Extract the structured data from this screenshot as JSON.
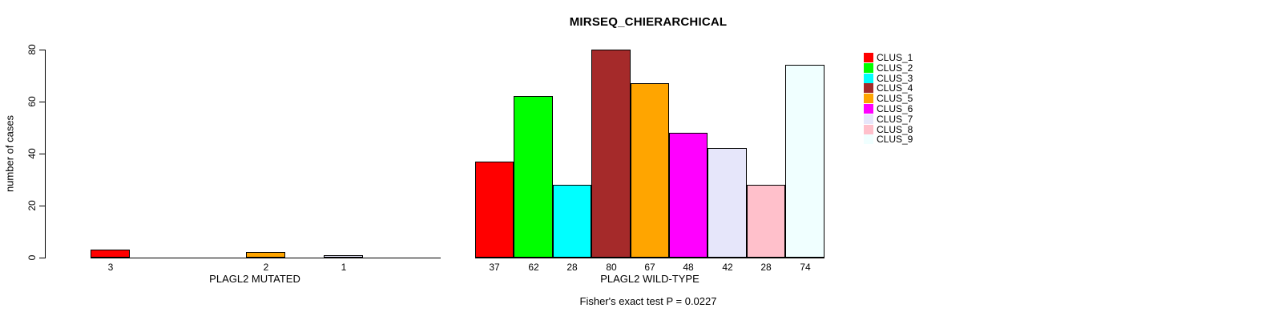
{
  "chart_data": {
    "type": "bar",
    "title": "MIRSEQ_CHIERARCHICAL",
    "ylabel": "number of cases",
    "ylim": [
      0,
      80
    ],
    "yticks": [
      0,
      20,
      40,
      60,
      80
    ],
    "grid": false,
    "bar_spacing": 0,
    "legend_position": "right",
    "annotation": "Fisher's exact test P = 0.0227",
    "legend_entries": [
      {
        "label": "CLUS_1",
        "color": "#FF0000"
      },
      {
        "label": "CLUS_2",
        "color": "#00FF00"
      },
      {
        "label": "CLUS_3",
        "color": "#00FFFF"
      },
      {
        "label": "CLUS_4",
        "color": "#A52A2A"
      },
      {
        "label": "CLUS_5",
        "color": "#FFA500"
      },
      {
        "label": "CLUS_6",
        "color": "#FF00FF"
      },
      {
        "label": "CLUS_7",
        "color": "#E6E6FA"
      },
      {
        "label": "CLUS_8",
        "color": "#FFC0CB"
      },
      {
        "label": "CLUS_9",
        "color": "#F0FFFF"
      }
    ],
    "panels": [
      {
        "xlabel": "PLAGL2 MUTATED",
        "slots": 9,
        "bars": [
          {
            "cluster": "CLUS_1",
            "slot": 0,
            "value": 3,
            "label": "3",
            "color": "#FF0000"
          },
          {
            "cluster": "CLUS_5",
            "slot": 4,
            "value": 2,
            "label": "2",
            "color": "#FFA500"
          },
          {
            "cluster": "CLUS_7",
            "slot": 6,
            "value": 1,
            "label": "1",
            "color": "#E6E6FA"
          }
        ]
      },
      {
        "xlabel": "PLAGL2 WILD-TYPE",
        "slots": 9,
        "bars": [
          {
            "cluster": "CLUS_1",
            "slot": 0,
            "value": 37,
            "label": "37",
            "color": "#FF0000"
          },
          {
            "cluster": "CLUS_2",
            "slot": 1,
            "value": 62,
            "label": "62",
            "color": "#00FF00"
          },
          {
            "cluster": "CLUS_3",
            "slot": 2,
            "value": 28,
            "label": "28",
            "color": "#00FFFF"
          },
          {
            "cluster": "CLUS_4",
            "slot": 3,
            "value": 80,
            "label": "80",
            "color": "#A52A2A"
          },
          {
            "cluster": "CLUS_5",
            "slot": 4,
            "value": 67,
            "label": "67",
            "color": "#FFA500"
          },
          {
            "cluster": "CLUS_6",
            "slot": 5,
            "value": 48,
            "label": "48",
            "color": "#FF00FF"
          },
          {
            "cluster": "CLUS_7",
            "slot": 6,
            "value": 42,
            "label": "42",
            "color": "#E6E6FA"
          },
          {
            "cluster": "CLUS_8",
            "slot": 7,
            "value": 28,
            "label": "28",
            "color": "#FFC0CB"
          },
          {
            "cluster": "CLUS_9",
            "slot": 8,
            "value": 74,
            "label": "74",
            "color": "#F0FFFF"
          }
        ]
      }
    ]
  }
}
